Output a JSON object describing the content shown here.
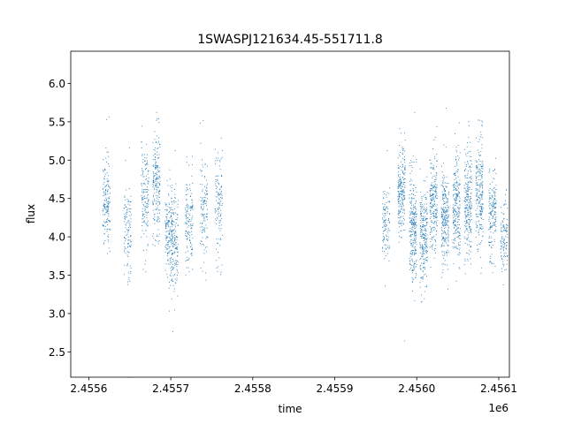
{
  "chart_data": {
    "type": "scatter",
    "title": "1SWASPJ121634.45-551711.8",
    "xlabel": "time",
    "ylabel": "flux",
    "x_offset_label": "1e6",
    "xlim": [
      2455578,
      2456113
    ],
    "ylim": [
      2.17,
      6.42
    ],
    "x_ticks": [
      {
        "value": 2455600,
        "label": "2.4556"
      },
      {
        "value": 2455700,
        "label": "2.4557"
      },
      {
        "value": 2455800,
        "label": "2.4558"
      },
      {
        "value": 2455900,
        "label": "2.4559"
      },
      {
        "value": 2456000,
        "label": "2.4560"
      },
      {
        "value": 2456100,
        "label": "2.4561"
      }
    ],
    "y_ticks": [
      {
        "value": 2.5,
        "label": "2.5"
      },
      {
        "value": 3.0,
        "label": "3.0"
      },
      {
        "value": 3.5,
        "label": "3.5"
      },
      {
        "value": 4.0,
        "label": "4.0"
      },
      {
        "value": 4.5,
        "label": "4.5"
      },
      {
        "value": 5.0,
        "label": "5.0"
      },
      {
        "value": 5.5,
        "label": "5.5"
      },
      {
        "value": 6.0,
        "label": "6.0"
      }
    ],
    "grid": false,
    "legend": "none",
    "color": "#1f77b4",
    "seasons": [
      {
        "nights": [
          {
            "t": 2455621,
            "mean": 4.45,
            "sd": 0.28,
            "n": 160
          },
          {
            "t": 2455647,
            "mean": 4.1,
            "sd": 0.28,
            "n": 120
          },
          {
            "t": 2455668,
            "mean": 4.55,
            "sd": 0.3,
            "n": 150
          },
          {
            "t": 2455682,
            "mean": 4.65,
            "sd": 0.35,
            "n": 200
          },
          {
            "t": 2455697,
            "mean": 4.05,
            "sd": 0.3,
            "n": 160
          },
          {
            "t": 2455704,
            "mean": 3.9,
            "sd": 0.35,
            "n": 160
          },
          {
            "t": 2455722,
            "mean": 4.2,
            "sd": 0.3,
            "n": 140
          },
          {
            "t": 2455740,
            "mean": 4.35,
            "sd": 0.35,
            "n": 120
          },
          {
            "t": 2455758,
            "mean": 4.45,
            "sd": 0.35,
            "n": 120
          }
        ]
      },
      {
        "nights": [
          {
            "t": 2455962,
            "mean": 4.15,
            "sd": 0.25,
            "n": 110
          },
          {
            "t": 2455981,
            "mean": 4.6,
            "sd": 0.3,
            "n": 220
          },
          {
            "t": 2455995,
            "mean": 4.1,
            "sd": 0.35,
            "n": 260
          },
          {
            "t": 2456008,
            "mean": 4.0,
            "sd": 0.3,
            "n": 240
          },
          {
            "t": 2456020,
            "mean": 4.45,
            "sd": 0.3,
            "n": 220
          },
          {
            "t": 2456034,
            "mean": 4.25,
            "sd": 0.3,
            "n": 240
          },
          {
            "t": 2456048,
            "mean": 4.4,
            "sd": 0.35,
            "n": 230
          },
          {
            "t": 2456062,
            "mean": 4.45,
            "sd": 0.35,
            "n": 230
          },
          {
            "t": 2456076,
            "mean": 4.55,
            "sd": 0.35,
            "n": 230
          },
          {
            "t": 2456092,
            "mean": 4.3,
            "sd": 0.3,
            "n": 170
          },
          {
            "t": 2456106,
            "mean": 4.0,
            "sd": 0.25,
            "n": 110
          }
        ]
      }
    ]
  }
}
